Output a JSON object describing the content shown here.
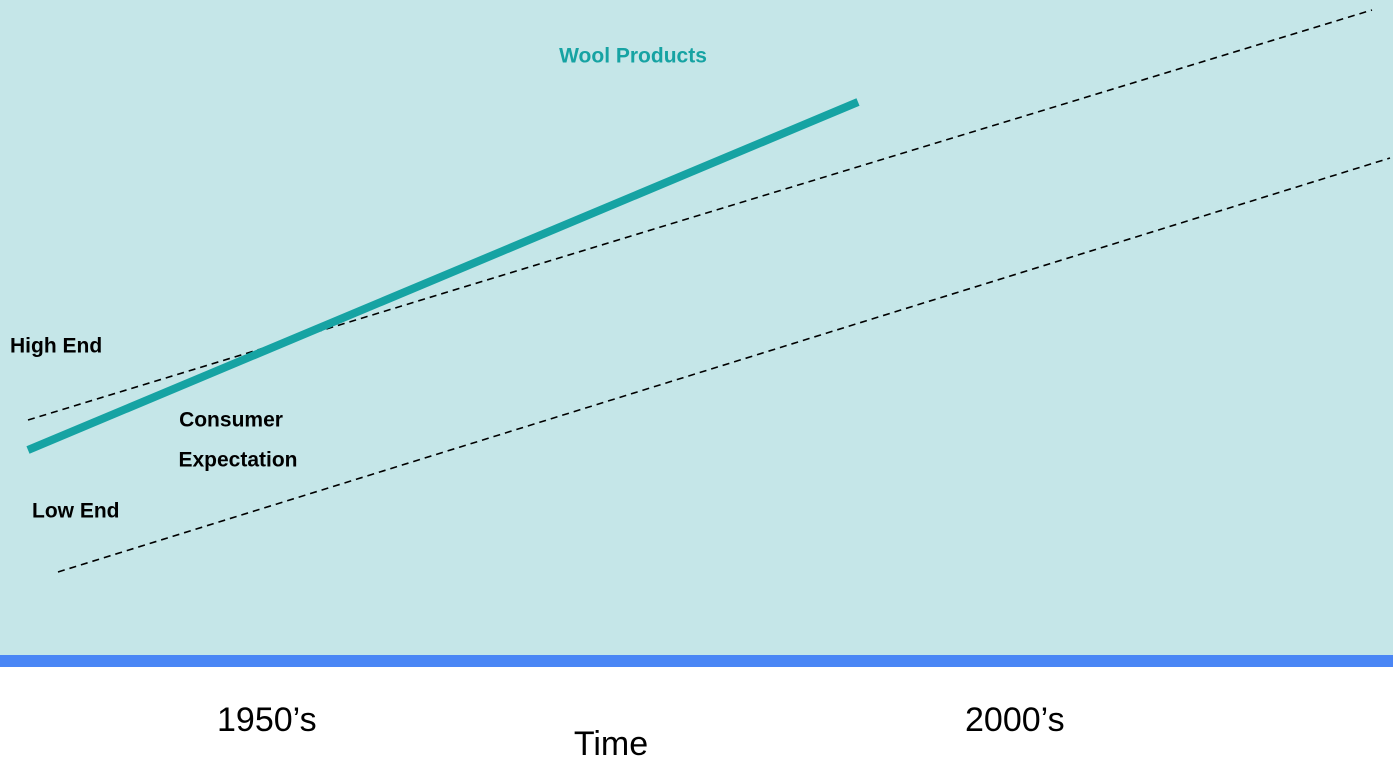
{
  "title": "Wool Products",
  "bands": {
    "high": "High End",
    "low": "Low End"
  },
  "expectation": [
    "Consumer",
    "Expectation"
  ],
  "time_axis": {
    "start": "1950’s",
    "label": "Time",
    "end": "2000’s"
  }
}
